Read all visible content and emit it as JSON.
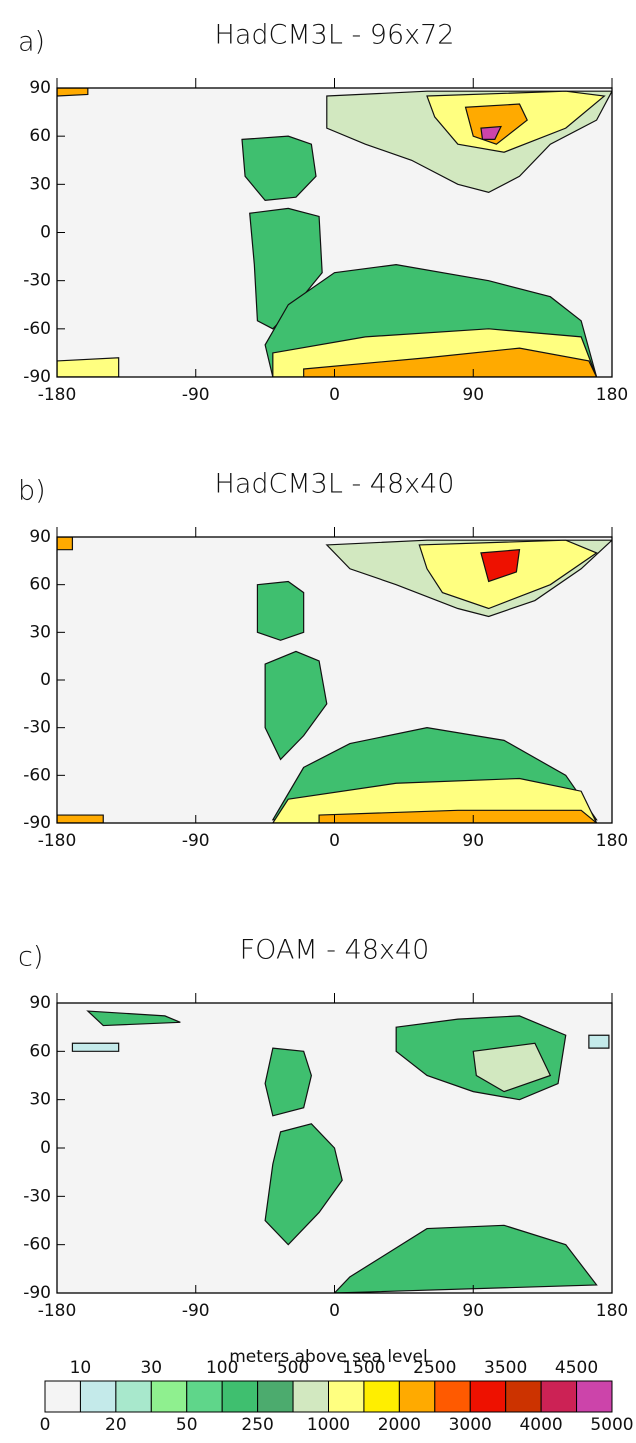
{
  "chart_data": [
    {
      "type": "map",
      "label": "a)",
      "title": "HadCM3L - 96x72",
      "xlim": [
        -180,
        180
      ],
      "ylim": [
        -90,
        90
      ],
      "xticks": [
        -180,
        -90,
        0,
        90,
        180
      ],
      "yticks": [
        90,
        60,
        30,
        0,
        -30,
        -60,
        -90
      ]
    },
    {
      "type": "map",
      "label": "b)",
      "title": "HadCM3L - 48x40",
      "xlim": [
        -180,
        180
      ],
      "ylim": [
        -90,
        90
      ],
      "xticks": [
        -180,
        -90,
        0,
        90,
        180
      ],
      "yticks": [
        90,
        60,
        30,
        0,
        -30,
        -60,
        -90
      ]
    },
    {
      "type": "map",
      "label": "c)",
      "title": "FOAM - 48x40",
      "xlim": [
        -180,
        180
      ],
      "ylim": [
        -90,
        90
      ],
      "xticks": [
        -180,
        -90,
        0,
        90,
        180
      ],
      "yticks": [
        90,
        60,
        30,
        0,
        -30,
        -60,
        -90
      ]
    },
    {
      "type": "colorbar",
      "title": "meters above sea level",
      "levels": [
        0,
        10,
        20,
        30,
        50,
        100,
        250,
        500,
        1000,
        1500,
        2000,
        2500,
        3000,
        3500,
        4000,
        4500,
        5000
      ],
      "colors": [
        "#f4f4f4",
        "#c4eaea",
        "#a8e8cc",
        "#8ff08f",
        "#5fd68a",
        "#3fbf6f",
        "#4cab6e",
        "#d2e8c0",
        "#ffff80",
        "#ffee00",
        "#ffaa00",
        "#ff5a00",
        "#ee1100",
        "#cc3300",
        "#cc2255",
        "#cc44aa"
      ]
    }
  ]
}
